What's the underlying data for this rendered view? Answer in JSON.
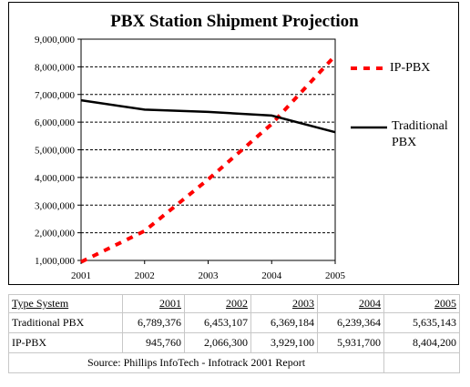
{
  "chart_data": {
    "type": "line",
    "title": "PBX Station Shipment Projection",
    "x": [
      "2001",
      "2002",
      "2003",
      "2004",
      "2005"
    ],
    "ylim": [
      1000000,
      9000000
    ],
    "y_ticks": [
      "1,000,000",
      "2,000,000",
      "3,000,000",
      "4,000,000",
      "5,000,000",
      "6,000,000",
      "7,000,000",
      "8,000,000",
      "9,000,000"
    ],
    "grid": "horizontal-dashed",
    "legend_position": "right",
    "series": [
      {
        "name": "IP-PBX",
        "color": "#ff0000",
        "style": "dashed",
        "values": [
          945760,
          2066300,
          3929100,
          5931700,
          8404200
        ]
      },
      {
        "name": "Traditional PBX",
        "color": "#000000",
        "style": "solid",
        "values": [
          6789376,
          6453107,
          6369184,
          6239364,
          5635143
        ]
      }
    ]
  },
  "legend": {
    "ip_label": "IP-PBX",
    "trad_label_1": "Traditional",
    "trad_label_2": "PBX"
  },
  "table": {
    "header": [
      "Type System",
      "2001",
      "2002",
      "2003",
      "2004",
      "2005"
    ],
    "rows": [
      [
        "Traditional PBX",
        "6,789,376",
        "6,453,107",
        "6,369,184",
        "6,239,364",
        "5,635,143"
      ],
      [
        "IP-PBX",
        "945,760",
        "2,066,300",
        "3,929,100",
        "5,931,700",
        "8,404,200"
      ]
    ],
    "source": "Source:  Phillips InfoTech - Infotrack 2001 Report"
  }
}
